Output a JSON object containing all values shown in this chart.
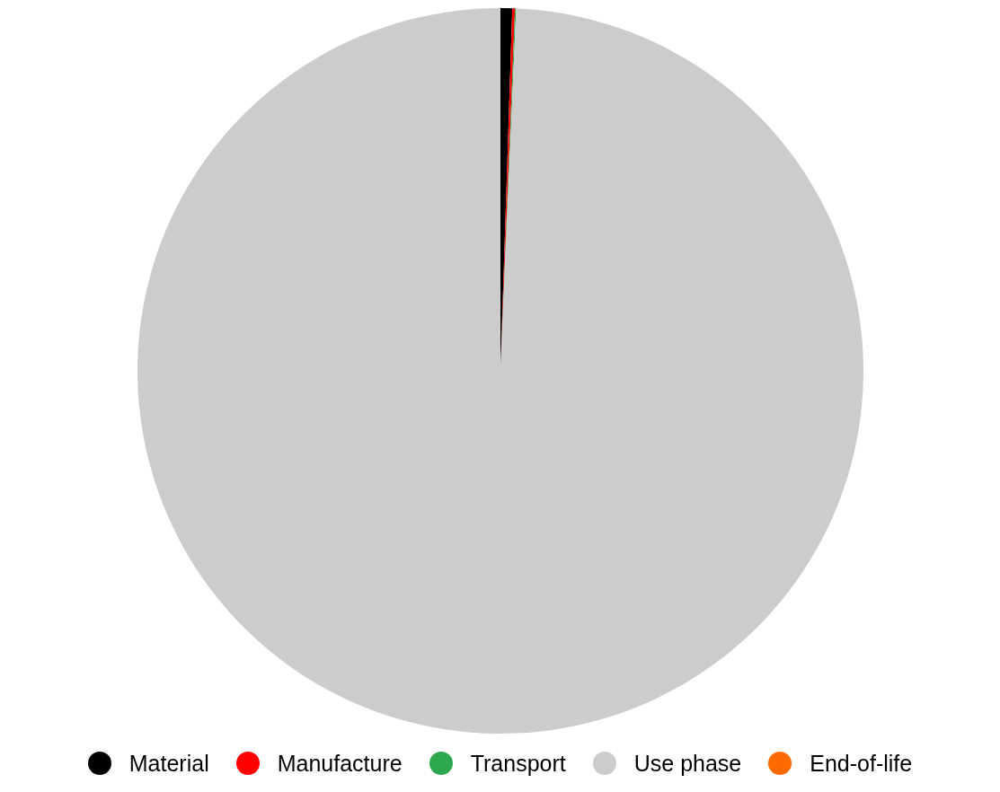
{
  "chart_data": {
    "type": "pie",
    "categories": [
      "Material",
      "Manufacture",
      "Transport",
      "Use phase",
      "End-of-life"
    ],
    "values": [
      0.52,
      0.12,
      0.05,
      99.29,
      null
    ],
    "colors": [
      "#000000",
      "#ff0000",
      "#2ea84f",
      "#cccccc",
      "#ff6a00"
    ],
    "legend": "bottom"
  }
}
